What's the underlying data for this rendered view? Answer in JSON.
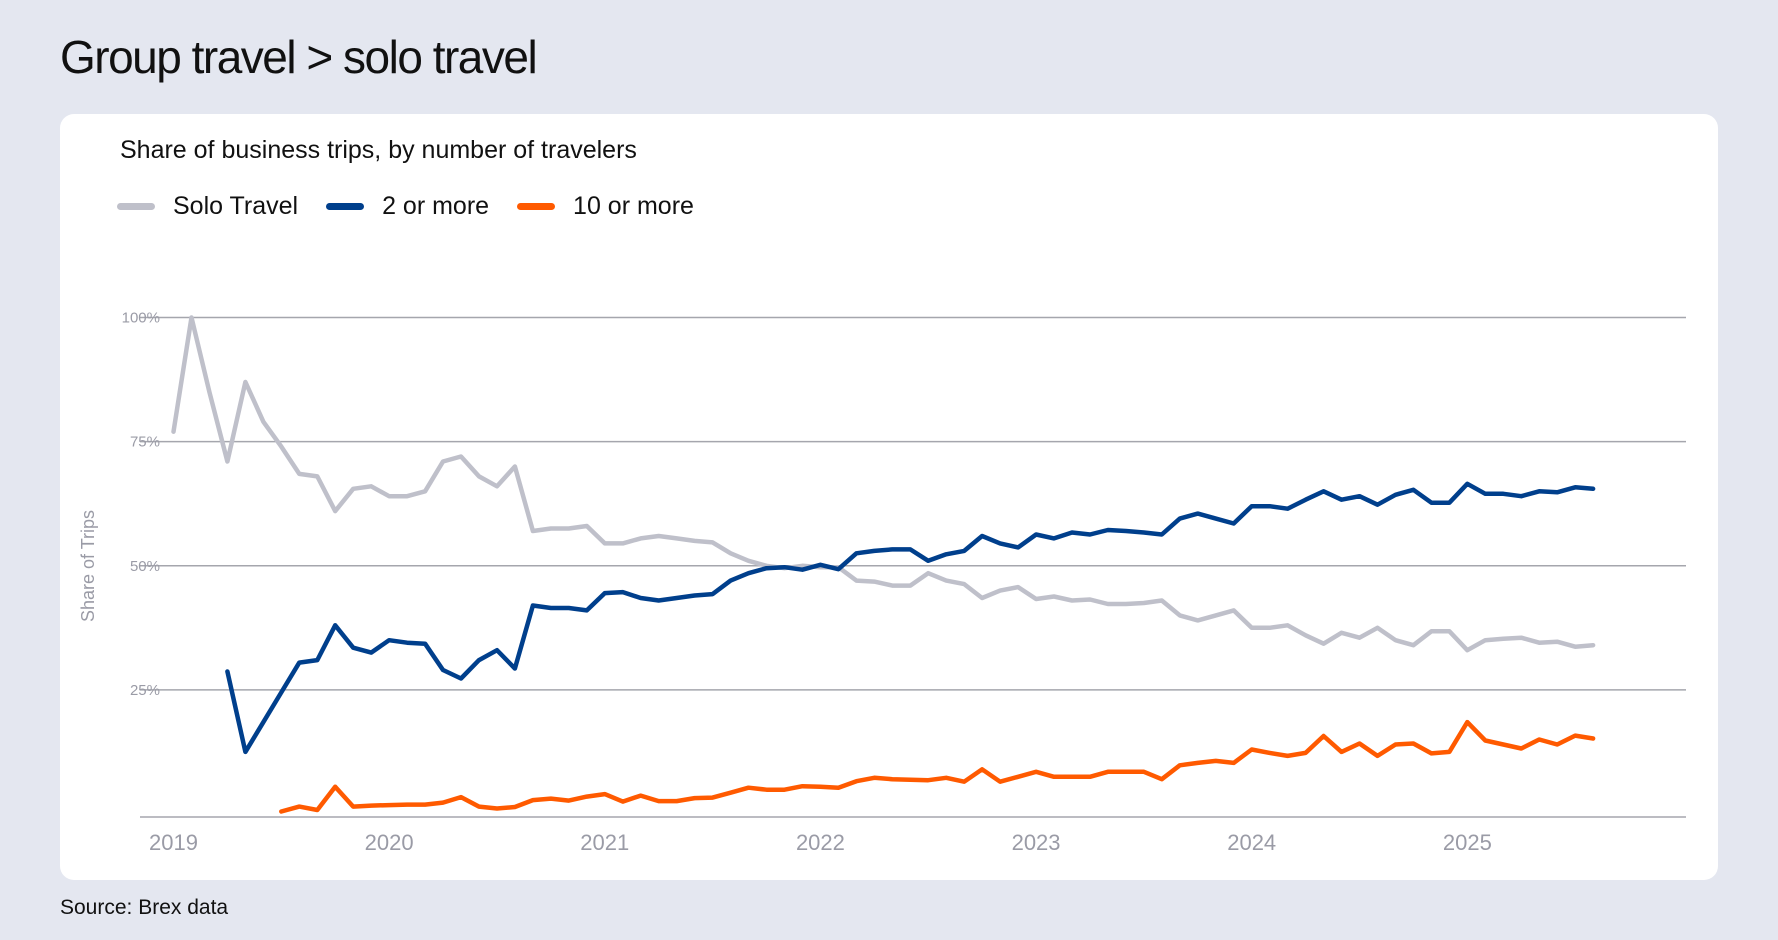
{
  "title": "Group travel > solo travel",
  "source": "Source: Brex data",
  "chart_data": {
    "type": "line",
    "title": "Share of business trips, by number of travelers",
    "ylabel": "Share of Trips",
    "xlabel": "",
    "ylim": [
      0,
      100
    ],
    "yticks": [
      {
        "value": 25,
        "label": "25%"
      },
      {
        "value": 50,
        "label": "50%"
      },
      {
        "value": 75,
        "label": "75%"
      },
      {
        "value": 100,
        "label": "100%"
      }
    ],
    "xticks": [
      "2019",
      "2020",
      "2021",
      "2022",
      "2023",
      "2024",
      "2025"
    ],
    "grid": true,
    "legend_position": "top-left",
    "x_unit": "month",
    "series": [
      {
        "name": "Solo Travel",
        "color": "#bfc0ca",
        "start": "2019-01",
        "values": [
          77,
          100,
          85,
          71,
          87,
          79,
          74,
          68.5,
          68,
          61,
          65.5,
          66,
          64,
          64,
          65,
          71,
          72,
          68,
          66,
          70,
          57,
          57.5,
          57.5,
          58,
          54.5,
          54.5,
          55.5,
          56,
          55.5,
          55,
          54.7,
          52.5,
          51,
          50,
          49.5,
          50,
          49.7,
          49.7,
          47,
          46.8,
          46,
          46,
          48.5,
          47,
          46.3,
          43.5,
          45,
          45.7,
          43.3,
          43.8,
          43,
          43.2,
          42.3,
          42.3,
          42.5,
          43,
          40,
          39,
          40,
          41,
          37.5,
          37.5,
          38,
          36,
          34.3,
          36.5,
          35.5,
          37.5,
          35,
          34,
          36.8,
          36.8,
          33,
          35,
          35.3,
          35.5,
          34.5,
          34.7,
          33.7,
          34
        ]
      },
      {
        "name": "2 or more",
        "color": "#003f8c",
        "start": "2019-04",
        "values": [
          28.7,
          12.5,
          18.5,
          24.5,
          30.5,
          31,
          38,
          33.5,
          32.5,
          35,
          34.5,
          34.3,
          29,
          27.3,
          31,
          33,
          29.3,
          42,
          41.5,
          41.5,
          41,
          44.5,
          44.7,
          43.5,
          43,
          43.5,
          44,
          44.3,
          47,
          48.5,
          49.5,
          49.7,
          49.2,
          50.2,
          49.3,
          52.5,
          53,
          53.3,
          53.3,
          51,
          52.3,
          53,
          56,
          54.5,
          53.7,
          56.3,
          55.5,
          56.7,
          56.3,
          57.2,
          57,
          56.7,
          56.3,
          59.5,
          60.5,
          59.5,
          58.5,
          62,
          62,
          61.5,
          63.3,
          65,
          63.3,
          64,
          62.3,
          64.3,
          65.3,
          62.7,
          62.7,
          66.5,
          64.5,
          64.5,
          64,
          65,
          64.8,
          65.8,
          65.5
        ]
      },
      {
        "name": "10 or more",
        "color": "#ff5a00",
        "start": "2019-07",
        "values": [
          0.5,
          1.5,
          0.8,
          5.5,
          1.5,
          1.7,
          1.8,
          1.9,
          1.9,
          2.3,
          3.4,
          1.5,
          1.1,
          1.4,
          2.8,
          3.1,
          2.7,
          3.5,
          4.0,
          2.5,
          3.7,
          2.6,
          2.6,
          3.2,
          3.3,
          4.3,
          5.3,
          4.9,
          4.9,
          5.6,
          5.5,
          5.3,
          6.6,
          7.3,
          7,
          6.9,
          6.8,
          7.3,
          6.5,
          9,
          6.5,
          7.5,
          8.5,
          7.5,
          7.5,
          7.5,
          8.5,
          8.5,
          8.5,
          7,
          9.8,
          10.3,
          10.7,
          10.3,
          13,
          12.3,
          11.7,
          12.3,
          15.7,
          12.5,
          14.2,
          11.7,
          14,
          14.2,
          12.2,
          12.5,
          18.5,
          14.8,
          14,
          13.2,
          15,
          14,
          15.8,
          15.2
        ]
      }
    ]
  }
}
